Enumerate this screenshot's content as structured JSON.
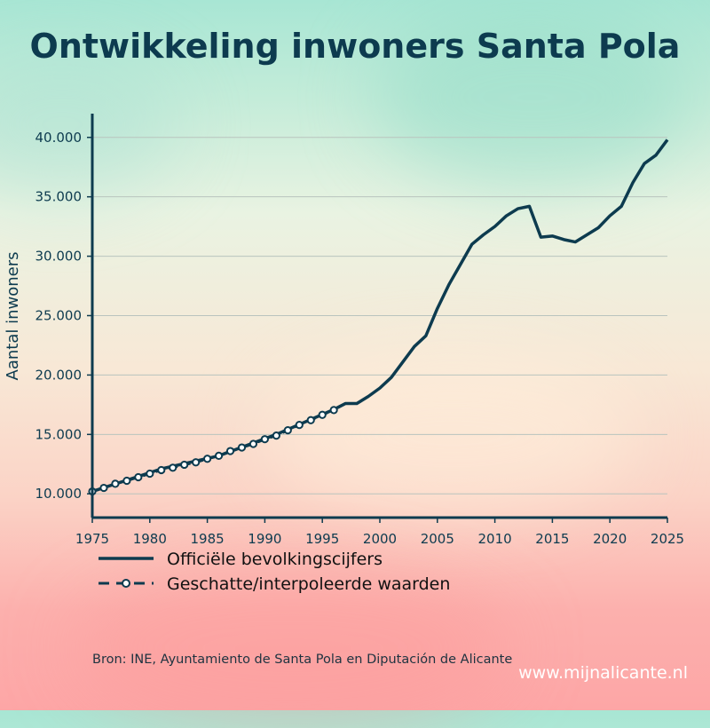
{
  "title": "Ontwikkeling inwoners Santa Pola",
  "source": "Bron: INE, Ayuntamiento de Santa Pola en Diputación de Alicante",
  "website": "www.mijnalicante.nl",
  "colors": {
    "line": "#0d3b4f",
    "marker_fill": "#ffffff",
    "grid": "#b9c4be",
    "axis": "#0d3b4f",
    "title": "#0d3b4f"
  },
  "chart_data": {
    "type": "line",
    "title": "Ontwikkeling inwoners Santa Pola",
    "xlabel": "",
    "ylabel": "Aantal inwoners",
    "xlim": [
      1975,
      2025
    ],
    "ylim": [
      8000,
      42000
    ],
    "grid": "horizontal",
    "legend_position": "bottom-left",
    "x_ticks": [
      1975,
      1980,
      1985,
      1990,
      1995,
      2000,
      2005,
      2010,
      2015,
      2020,
      2025
    ],
    "x_tick_labels": [
      "1975",
      "1980",
      "1985",
      "1990",
      "1995",
      "2000",
      "2005",
      "2010",
      "2015",
      "2020",
      "2025"
    ],
    "y_ticks": [
      10000,
      15000,
      20000,
      25000,
      30000,
      35000,
      40000
    ],
    "y_tick_labels": [
      "10.000",
      "15.000",
      "20.000",
      "25.000",
      "30.000",
      "35.000",
      "40.000"
    ],
    "series": [
      {
        "name": "Officiële bevolkingscijfers",
        "style": "solid",
        "x": [
          1975,
          1981,
          1986,
          1991,
          1996,
          1997,
          1998,
          1999,
          2000,
          2001,
          2002,
          2003,
          2004,
          2005,
          2006,
          2007,
          2008,
          2009,
          2010,
          2011,
          2012,
          2013,
          2014,
          2015,
          2016,
          2017,
          2018,
          2019,
          2020,
          2021,
          2022,
          2023,
          2024,
          2025
        ],
        "y": [
          10200,
          12100,
          13200,
          15000,
          17100,
          17600,
          17600,
          18200,
          18900,
          19800,
          21100,
          22400,
          23300,
          25600,
          27600,
          29300,
          31000,
          31800,
          32500,
          33400,
          34000,
          34200,
          31600,
          31700,
          31400,
          31200,
          31800,
          32400,
          33400,
          34200,
          36200,
          37800,
          38500,
          39800
        ]
      },
      {
        "name": "Geschatte/interpoleerde waarden",
        "style": "dashed-markers",
        "x": [
          1975,
          1976,
          1977,
          1978,
          1979,
          1980,
          1981,
          1982,
          1983,
          1984,
          1985,
          1986,
          1987,
          1988,
          1989,
          1990,
          1991,
          1992,
          1993,
          1994,
          1995,
          1996
        ],
        "y": [
          10200,
          10500,
          10850,
          11100,
          11400,
          11700,
          12000,
          12200,
          12450,
          12650,
          12950,
          13200,
          13600,
          13900,
          14200,
          14600,
          14900,
          15350,
          15800,
          16200,
          16650,
          17050
        ]
      }
    ]
  }
}
